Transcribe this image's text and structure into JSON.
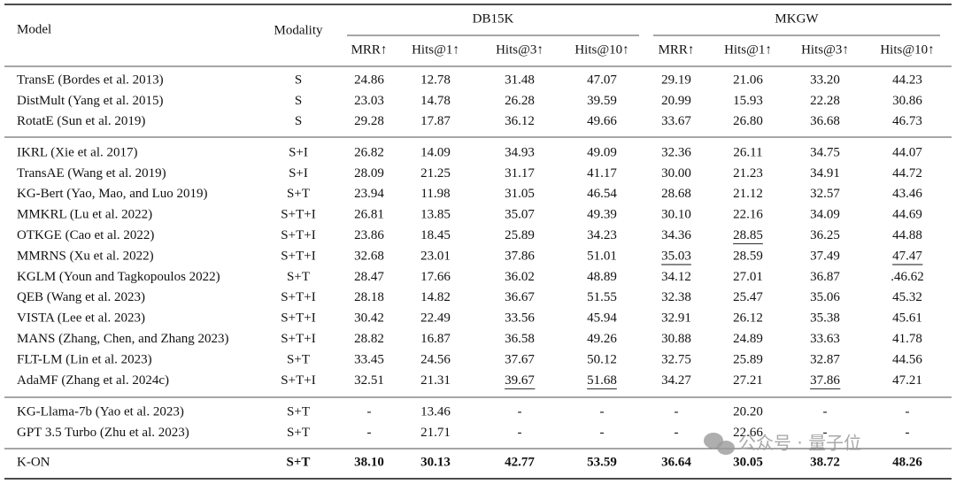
{
  "header": {
    "model": "Model",
    "modality": "Modality",
    "groups": [
      "DB15K",
      "MKGW"
    ],
    "metrics": [
      "MRR↑",
      "Hits@1↑",
      "Hits@3↑",
      "Hits@10↑",
      "MRR↑",
      "Hits@1↑",
      "Hits@3↑",
      "Hits@10↑"
    ]
  },
  "table": {
    "sections": [
      {
        "rows": [
          [
            "TransE (Bordes et al. 2013)",
            "S",
            "24.86",
            "12.78",
            "31.48",
            "47.07",
            "29.19",
            "21.06",
            "33.20",
            "44.23"
          ],
          [
            "DistMult (Yang et al. 2015)",
            "S",
            "23.03",
            "14.78",
            "26.28",
            "39.59",
            "20.99",
            "15.93",
            "22.28",
            "30.86"
          ],
          [
            "RotatE (Sun et al. 2019)",
            "S",
            "29.28",
            "17.87",
            "36.12",
            "49.66",
            "33.67",
            "26.80",
            "36.68",
            "46.73"
          ]
        ]
      },
      {
        "rows": [
          [
            "IKRL (Xie et al. 2017)",
            "S+I",
            "26.82",
            "14.09",
            "34.93",
            "49.09",
            "32.36",
            "26.11",
            "34.75",
            "44.07"
          ],
          [
            "TransAE (Wang et al. 2019)",
            "S+I",
            "28.09",
            "21.25",
            "31.17",
            "41.17",
            "30.00",
            "21.23",
            "34.91",
            "44.72"
          ],
          [
            "KG-Bert (Yao, Mao, and Luo 2019)",
            "S+T",
            "23.94",
            "11.98",
            "31.05",
            "46.54",
            "28.68",
            "21.12",
            "32.57",
            "43.46"
          ],
          [
            "MMKRL (Lu et al. 2022)",
            "S+T+I",
            "26.81",
            "13.85",
            "35.07",
            "49.39",
            "30.10",
            "22.16",
            "34.09",
            "44.69"
          ],
          [
            "OTKGE (Cao et al. 2022)",
            "S+T+I",
            "23.86",
            "18.45",
            "25.89",
            "34.23",
            "34.36",
            "28.85",
            "36.25",
            "44.88"
          ],
          [
            "MMRNS (Xu et al. 2022)",
            "S+T+I",
            "32.68",
            "23.01",
            "37.86",
            "51.01",
            "35.03",
            "28.59",
            "37.49",
            "47.47"
          ],
          [
            "KGLM (Youn and Tagkopoulos 2022)",
            "S+T",
            "28.47",
            "17.66",
            "36.02",
            "48.89",
            "34.12",
            "27.01",
            "36.87",
            ".46.62"
          ],
          [
            "QEB (Wang et al. 2023)",
            "S+T+I",
            "28.18",
            "14.82",
            "36.67",
            "51.55",
            "32.38",
            "25.47",
            "35.06",
            "45.32"
          ],
          [
            "VISTA (Lee et al. 2023)",
            "S+T+I",
            "30.42",
            "22.49",
            "33.56",
            "45.94",
            "32.91",
            "26.12",
            "35.38",
            "45.61"
          ],
          [
            "MANS (Zhang, Chen, and Zhang 2023)",
            "S+T+I",
            "28.82",
            "16.87",
            "36.58",
            "49.26",
            "30.88",
            "24.89",
            "33.63",
            "41.78"
          ],
          [
            "FLT-LM (Lin et al. 2023)",
            "S+T",
            "33.45",
            "24.56",
            "37.67",
            "50.12",
            "32.75",
            "25.89",
            "32.87",
            "44.56"
          ],
          [
            "AdaMF (Zhang et al. 2024c)",
            "S+T+I",
            "32.51",
            "21.31",
            "39.67",
            "51.68",
            "34.27",
            "27.21",
            "37.86",
            "47.21"
          ]
        ]
      },
      {
        "rows": [
          [
            "KG-Llama-7b (Yao et al. 2023)",
            "S+T",
            "-",
            "13.46",
            "-",
            "-",
            "-",
            "20.20",
            "-",
            "-"
          ],
          [
            "GPT 3.5 Turbo (Zhu et al. 2023)",
            "S+T",
            "-",
            "21.71",
            "-",
            "-",
            "-",
            "22.66",
            "-",
            "-"
          ]
        ]
      },
      {
        "rows": [
          [
            "K-ON",
            "S+T",
            "38.10",
            "30.13",
            "42.77",
            "53.59",
            "36.64",
            "30.05",
            "38.72",
            "48.26"
          ]
        ]
      }
    ]
  },
  "formatting": {
    "bold_sections": [
      3
    ],
    "underlined": [
      [
        1,
        4,
        7
      ],
      [
        1,
        5,
        6
      ],
      [
        1,
        5,
        9
      ],
      [
        1,
        11,
        4
      ],
      [
        1,
        11,
        5
      ],
      [
        1,
        11,
        8
      ]
    ]
  },
  "watermark": "公众号 · 量子位"
}
